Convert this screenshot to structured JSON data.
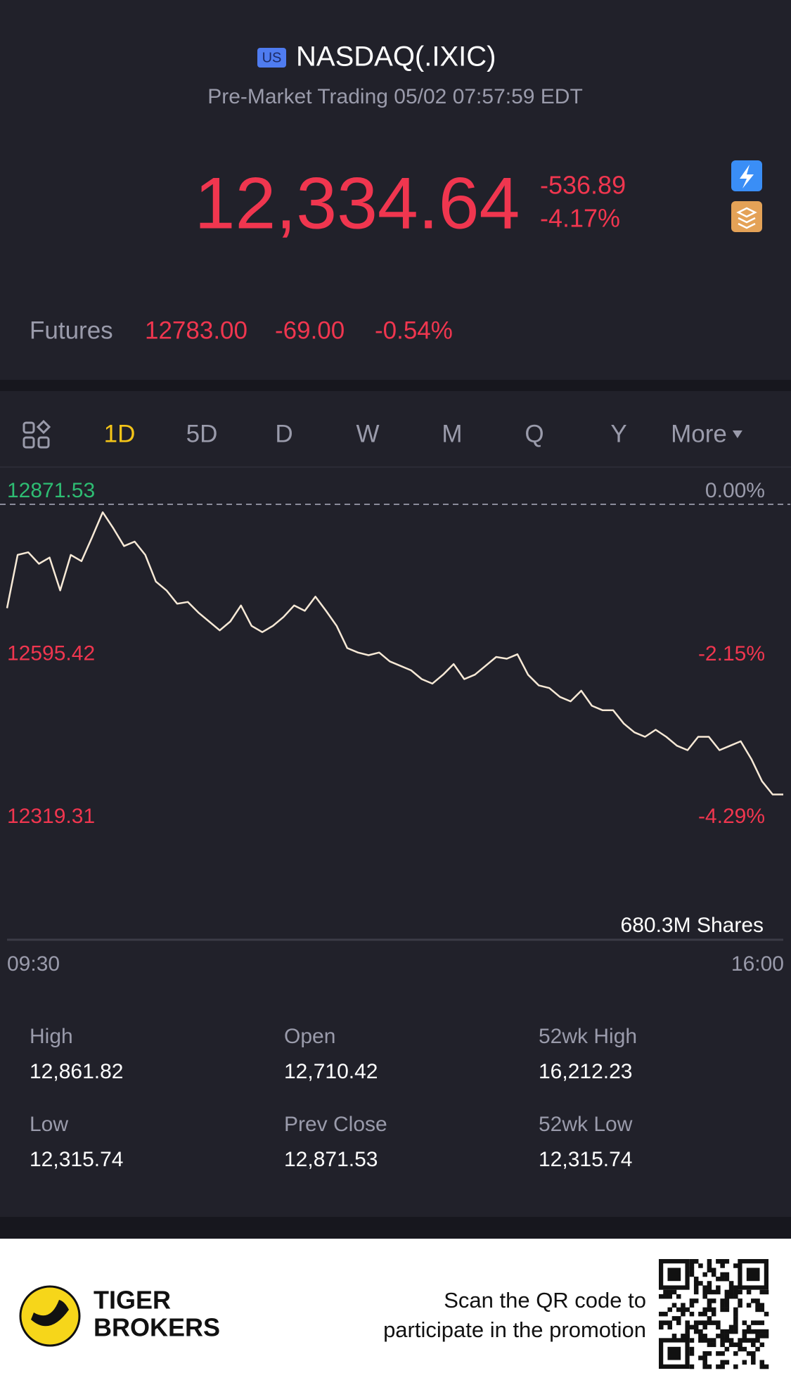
{
  "header": {
    "badge": "US",
    "title": "NASDAQ(.IXIC)",
    "subtitle": "Pre-Market Trading 05/02 07:57:59 EDT"
  },
  "quote": {
    "price": "12,334.64",
    "change": "-536.89",
    "change_pct": "-4.17%"
  },
  "futures": {
    "label": "Futures",
    "price": "12783.00",
    "change": "-69.00",
    "change_pct": "-0.54%"
  },
  "tabs": [
    "1D",
    "5D",
    "D",
    "W",
    "M",
    "Q",
    "Y",
    "More"
  ],
  "active_tab": 0,
  "chart_data": {
    "type": "line",
    "color": "#f7e9d6",
    "values": [
      12695.5,
      12785.8,
      12790.2,
      12770.7,
      12781.2,
      12725.5,
      12785.8,
      12775.2,
      12815.8,
      12858.0,
      12830.9,
      12800.8,
      12808.3,
      12785.8,
      12740.6,
      12725.5,
      12703.0,
      12706.0,
      12688.0,
      12672.9,
      12657.8,
      12672.9,
      12700.0,
      12665.4,
      12654.8,
      12665.4,
      12680.4,
      12700.0,
      12691.0,
      12715.0,
      12691.0,
      12665.4,
      12627.7,
      12620.2,
      12615.7,
      12620.2,
      12605.2,
      12597.6,
      12590.1,
      12575.1,
      12567.5,
      12582.6,
      12600.7,
      12575.1,
      12582.6,
      12597.6,
      12612.7,
      12609.7,
      12617.2,
      12582.6,
      12564.5,
      12560.0,
      12545.0,
      12537.5,
      12555.5,
      12529.9,
      12522.4,
      12522.4,
      12499.8,
      12484.8,
      12477.3,
      12489.3,
      12477.3,
      12462.2,
      12454.7,
      12477.3,
      12477.3,
      12454.7,
      12462.2,
      12469.7,
      12439.7,
      12402.0,
      12379.5,
      12379.5
    ],
    "ylim": [
      12319.31,
      12871.53
    ],
    "yticks": [
      12871.53,
      12595.42,
      12319.31
    ],
    "y2lim": [
      -4.29,
      0
    ],
    "y2ticks": [
      {
        "value": 0,
        "label": "0.00%"
      },
      {
        "value": -2.15,
        "label": "-2.15%"
      },
      {
        "value": -4.29,
        "label": "-4.29%"
      }
    ],
    "x_labels": [
      "09:30",
      "16:00"
    ],
    "volume_label": "680.3M Shares"
  },
  "stats": [
    [
      {
        "label": "High",
        "value": "12,861.82"
      },
      {
        "label": "Open",
        "value": "12,710.42"
      },
      {
        "label": "52wk High",
        "value": "16,212.23"
      }
    ],
    [
      {
        "label": "Low",
        "value": "12,315.74"
      },
      {
        "label": "Prev Close",
        "value": "12,871.53"
      },
      {
        "label": "52wk Low",
        "value": "12,315.74"
      }
    ]
  ],
  "footer": {
    "brand": [
      "TIGER",
      "BROKERS"
    ],
    "promo": [
      "Scan the QR code to",
      "participate in the promotion"
    ]
  }
}
